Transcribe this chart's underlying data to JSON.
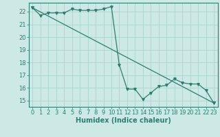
{
  "xlabel": "Humidex (Indice chaleur)",
  "background_color": "#cce9e5",
  "line_color": "#2e7d6e",
  "xlim": [
    -0.5,
    23.5
  ],
  "ylim": [
    14.5,
    22.7
  ],
  "yticks": [
    15,
    16,
    17,
    18,
    19,
    20,
    21,
    22
  ],
  "xticks": [
    0,
    1,
    2,
    3,
    4,
    5,
    6,
    7,
    8,
    9,
    10,
    11,
    12,
    13,
    14,
    15,
    16,
    17,
    18,
    19,
    20,
    21,
    22,
    23
  ],
  "series1_x": [
    0,
    1,
    2,
    3,
    4,
    5,
    6,
    7,
    8,
    9,
    10,
    11,
    12,
    13,
    14,
    15,
    16,
    17,
    18,
    19,
    20,
    21,
    22,
    23
  ],
  "series1_y": [
    22.3,
    21.7,
    21.9,
    21.9,
    21.9,
    22.2,
    22.1,
    22.1,
    22.1,
    22.2,
    22.4,
    17.8,
    15.9,
    15.9,
    15.1,
    15.6,
    16.1,
    16.2,
    16.7,
    16.4,
    16.3,
    16.3,
    15.8,
    14.8
  ],
  "series2_x": [
    0,
    23
  ],
  "series2_y": [
    22.3,
    14.8
  ],
  "grid_color": "#aad4cc",
  "tick_label_fontsize": 6,
  "xlabel_fontsize": 7,
  "marker_size": 2.5
}
